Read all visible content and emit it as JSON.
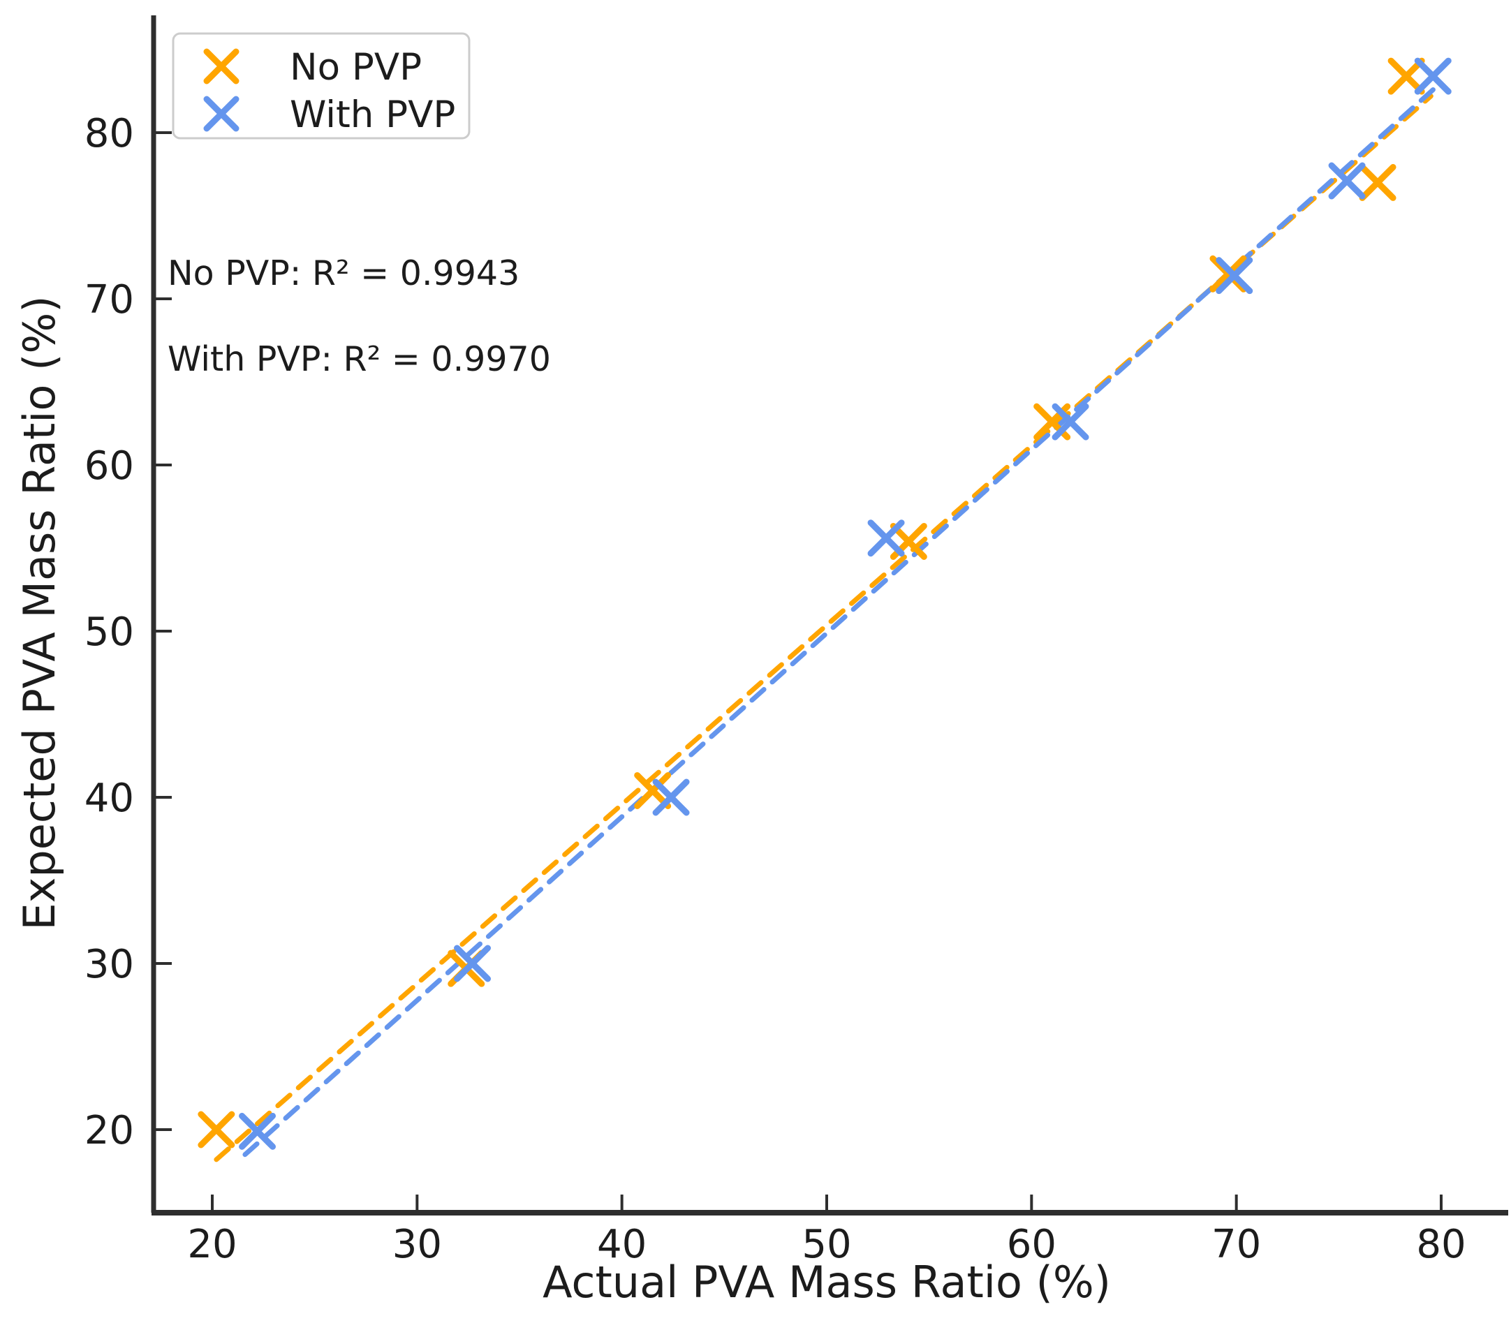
{
  "figure": {
    "background": "#ffffff",
    "text_color": "#1c1c1c",
    "spine_color": "#2e2e2e",
    "legend_border_color": "#cccccc"
  },
  "chart_data": {
    "type": "scatter",
    "title": "",
    "xlabel": "Actual PVA Mass Ratio (%)",
    "ylabel": "Expected PVA Mass Ratio (%)",
    "xlim": [
      17,
      83.5
    ],
    "ylim": [
      15,
      87
    ],
    "x_ticks": [
      20,
      30,
      40,
      50,
      60,
      70,
      80
    ],
    "y_ticks": [
      20,
      30,
      40,
      50,
      60,
      70,
      80
    ],
    "grid": false,
    "legend_position": "upper left",
    "marker": "x",
    "series": [
      {
        "name": "No PVP",
        "color": "#FFA500",
        "r_squared": 0.9943,
        "points": [
          [
            20.2,
            20.0
          ],
          [
            32.4,
            29.7
          ],
          [
            41.5,
            40.4
          ],
          [
            54.0,
            55.4
          ],
          [
            61.0,
            62.6
          ],
          [
            69.6,
            71.5
          ],
          [
            76.9,
            77.0
          ],
          [
            78.3,
            83.4
          ]
        ],
        "trendline": {
          "style": "dashed",
          "x1": 20.2,
          "y1": 18.2,
          "x2": 79.5,
          "y2": 82.2
        }
      },
      {
        "name": "With PVP",
        "color": "#6495ED",
        "r_squared": 0.997,
        "points": [
          [
            22.2,
            19.9
          ],
          [
            32.7,
            30.0
          ],
          [
            42.4,
            40.0
          ],
          [
            52.9,
            55.6
          ],
          [
            61.9,
            62.6
          ],
          [
            69.9,
            71.4
          ],
          [
            75.4,
            77.1
          ],
          [
            79.6,
            83.4
          ]
        ],
        "trendline": {
          "style": "dashed",
          "x1": 21.6,
          "y1": 18.5,
          "x2": 79.8,
          "y2": 82.8
        }
      }
    ],
    "annotations": [
      {
        "text": "No PVP: R² = 0.9943"
      },
      {
        "text": "With PVP: R² = 0.9970"
      }
    ]
  }
}
